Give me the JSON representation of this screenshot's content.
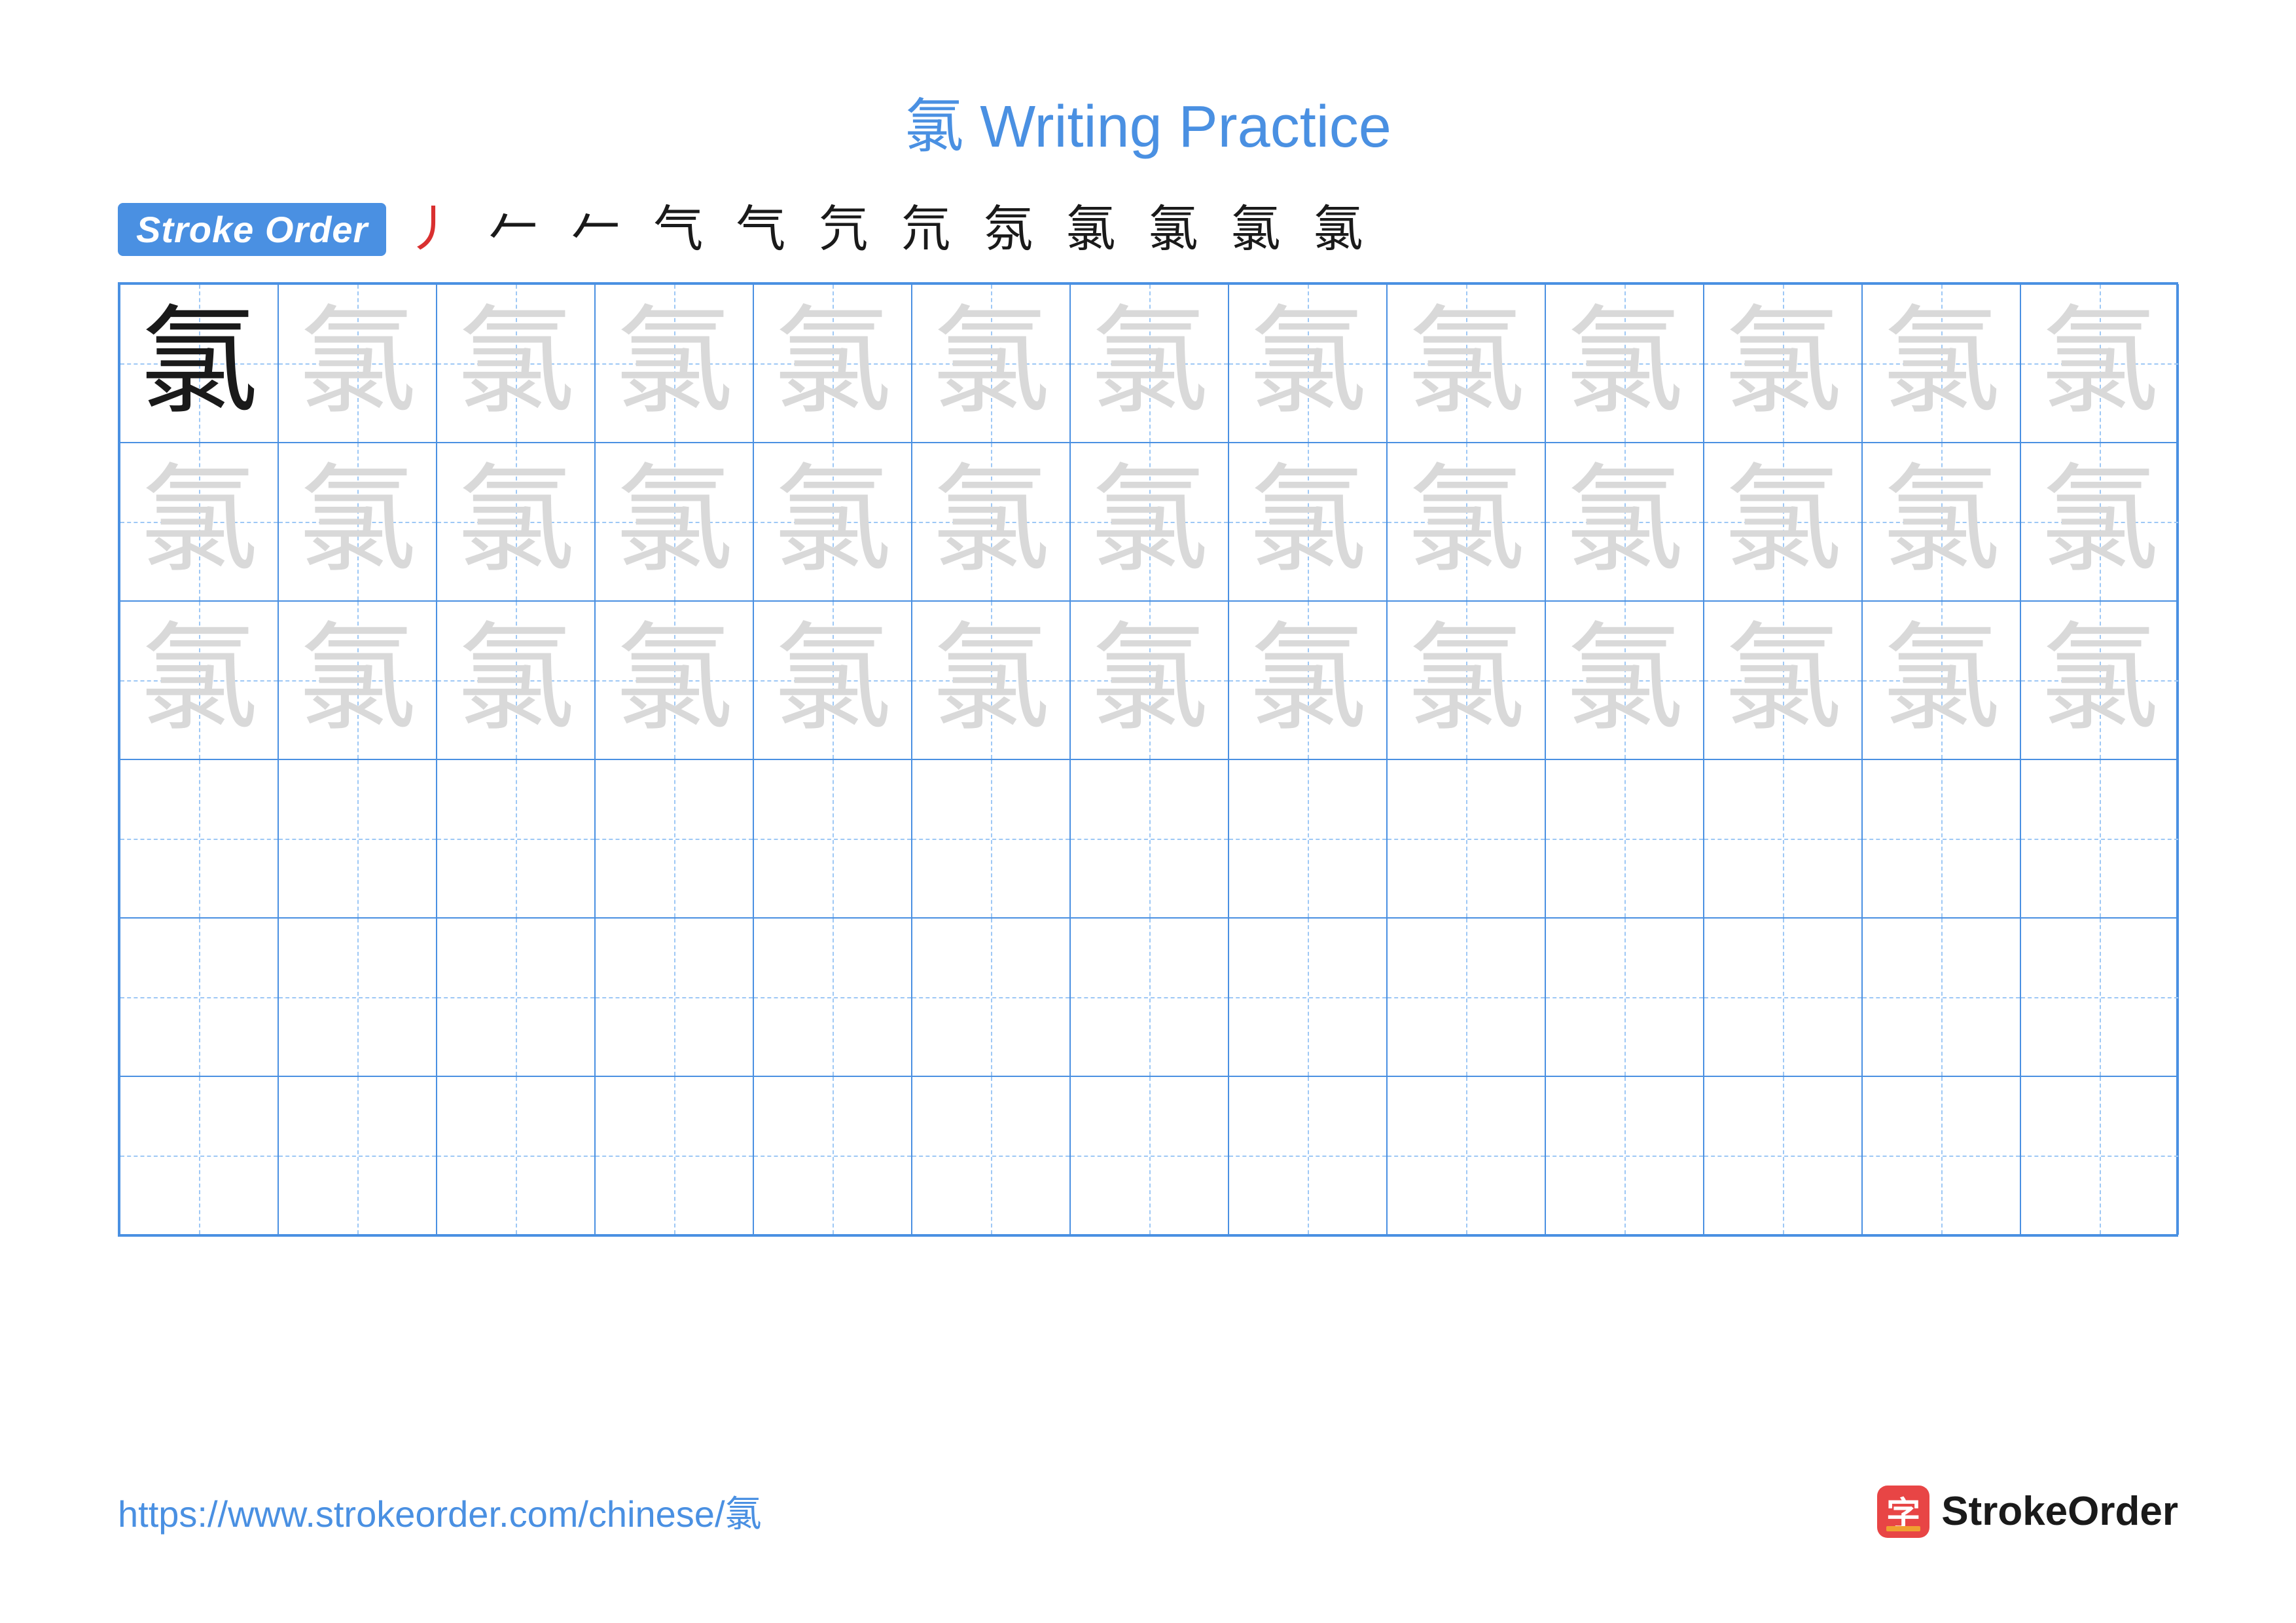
{
  "title": {
    "character": "氯",
    "suffix": " Writing Practice",
    "color": "#4a90e2",
    "fontsize": 90
  },
  "stroke_order": {
    "badge_label": "Stroke Order",
    "badge_bg": "#4a90e2",
    "badge_color": "#ffffff",
    "steps": [
      {
        "char": "丿",
        "color": "#d93030"
      },
      {
        "char": "𠂉",
        "color": "#1a1a1a"
      },
      {
        "char": "𠂉",
        "color": "#1a1a1a"
      },
      {
        "char": "气",
        "color": "#1a1a1a"
      },
      {
        "char": "气",
        "color": "#1a1a1a"
      },
      {
        "char": "氕",
        "color": "#1a1a1a"
      },
      {
        "char": "氘",
        "color": "#1a1a1a"
      },
      {
        "char": "氛",
        "color": "#1a1a1a"
      },
      {
        "char": "氯",
        "color": "#1a1a1a"
      },
      {
        "char": "氯",
        "color": "#1a1a1a"
      },
      {
        "char": "氯",
        "color": "#1a1a1a"
      },
      {
        "char": "氯",
        "color": "#1a1a1a"
      }
    ]
  },
  "grid": {
    "columns": 13,
    "rows": 6,
    "cell_size": 242,
    "border_color": "#4a90e2",
    "guide_color": "#9ec8f5",
    "character": "氯",
    "model_color": "#1a1a1a",
    "trace_color": "#d9d9d9",
    "char_fontsize": 180,
    "layout": [
      {
        "row": 0,
        "traced_rows": true,
        "first_is_model": true
      },
      {
        "row": 1,
        "traced_rows": true,
        "first_is_model": false
      },
      {
        "row": 2,
        "traced_rows": true,
        "first_is_model": false
      },
      {
        "row": 3,
        "traced_rows": false
      },
      {
        "row": 4,
        "traced_rows": false
      },
      {
        "row": 5,
        "traced_rows": false
      }
    ]
  },
  "footer": {
    "url": "https://www.strokeorder.com/chinese/氯",
    "url_color": "#4a90e2",
    "logo_icon_char": "字",
    "logo_icon_bg": "#e84545",
    "logo_text": "StrokeOrder"
  }
}
